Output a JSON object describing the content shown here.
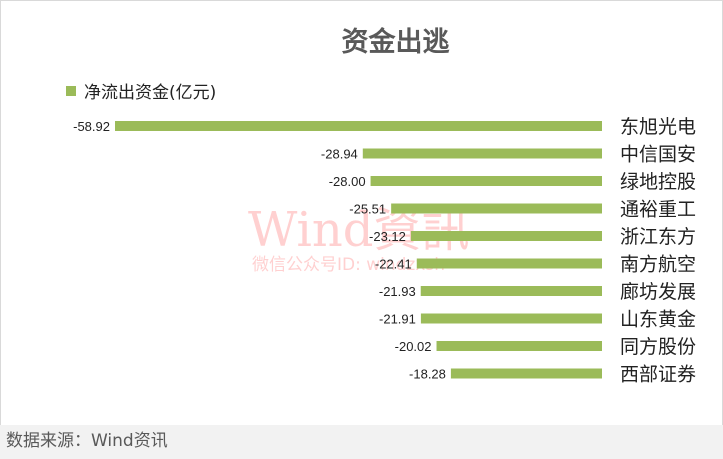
{
  "chart_data": {
    "type": "bar",
    "orientation": "horizontal",
    "title": "资金出逃",
    "legend": {
      "position": "top-left",
      "entries": [
        "净流出资金(亿元)"
      ]
    },
    "categories": [
      "东旭光电",
      "中信国安",
      "绿地控股",
      "通裕重工",
      "浙江东方",
      "南方航空",
      "廊坊发展",
      "山东黄金",
      "同方股份",
      "西部证券"
    ],
    "series": [
      {
        "name": "净流出资金(亿元)",
        "color": "#9bbb59",
        "values": [
          -58.92,
          -28.94,
          -28.0,
          -25.51,
          -23.12,
          -22.41,
          -21.93,
          -21.91,
          -20.02,
          -18.28
        ]
      }
    ],
    "data_labels": [
      "-58.92",
      "-28.94",
      "-28.00",
      "-25.51",
      "-23.12",
      "-22.41",
      "-21.93",
      "-21.91",
      "-20.02",
      "-18.28"
    ],
    "grid": false
  },
  "watermark": {
    "logo": "Wind資訊",
    "subtitle": "微信公众号ID: windzxsh"
  },
  "footer": {
    "source": "数据来源：Wind资讯"
  }
}
